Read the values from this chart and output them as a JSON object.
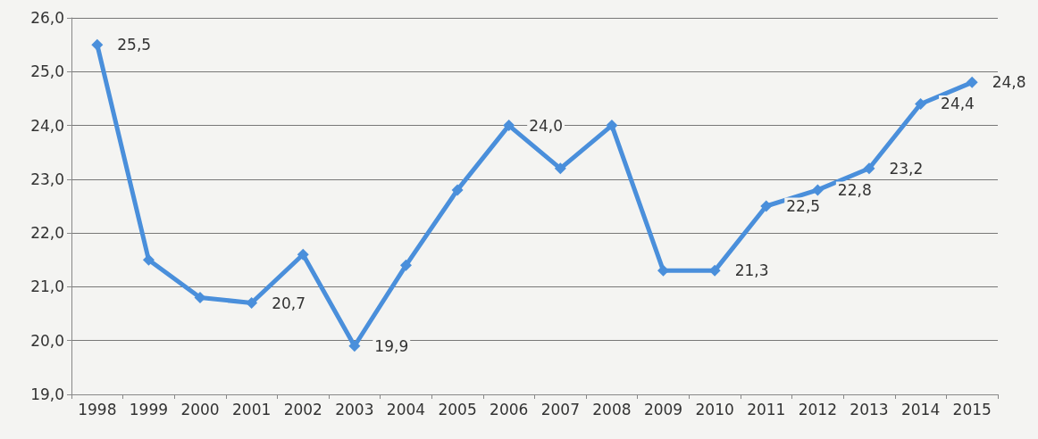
{
  "chart_data": {
    "type": "line",
    "categories": [
      "1998",
      "1999",
      "2000",
      "2001",
      "2002",
      "2003",
      "2004",
      "2005",
      "2006",
      "2007",
      "2008",
      "2009",
      "2010",
      "2011",
      "2012",
      "2013",
      "2014",
      "2015"
    ],
    "series": [
      {
        "color": "#4a8fdb",
        "values": [
          25.5,
          21.5,
          20.8,
          20.7,
          21.6,
          19.9,
          21.4,
          22.8,
          24.0,
          23.2,
          24.0,
          21.3,
          21.3,
          22.5,
          22.8,
          23.2,
          24.4,
          24.8
        ],
        "value_labels": [
          "25,5",
          null,
          null,
          "20,7",
          null,
          "19,9",
          null,
          null,
          "24,0",
          null,
          null,
          null,
          "21,3",
          "22,5",
          "22,8",
          "23,2",
          "24,4",
          "24,8"
        ]
      }
    ],
    "ylim": [
      19,
      26
    ],
    "yticks": [
      {
        "value": 19,
        "label": "19,0"
      },
      {
        "value": 20,
        "label": "20,0"
      },
      {
        "value": 21,
        "label": "21,0"
      },
      {
        "value": 22,
        "label": "22,0"
      },
      {
        "value": 23,
        "label": "23,0"
      },
      {
        "value": 24,
        "label": "24,0"
      },
      {
        "value": 25,
        "label": "25,0"
      },
      {
        "value": 26,
        "label": "26,0"
      }
    ],
    "grid": "y",
    "marker": "diamond",
    "line_style": "solid"
  }
}
